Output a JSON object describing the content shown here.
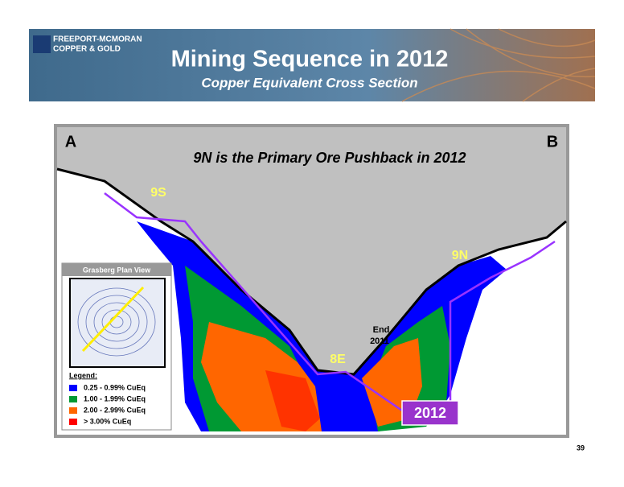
{
  "header": {
    "company_line1": "FREEPORT-MCMORAN",
    "company_line2": "COPPER & GOLD",
    "title": "Mining Sequence in 2012",
    "subtitle": "Copper Equivalent Cross Section"
  },
  "section": {
    "left_label": "A",
    "right_label": "B",
    "heading": "9N is the Primary Ore Pushback in 2012",
    "labels": {
      "s9": "9S",
      "n9": "9N",
      "e8": "8E",
      "end": "End",
      "end_year": "2011",
      "year": "2012"
    }
  },
  "inset": {
    "title": "Grasberg Plan View"
  },
  "legend": {
    "title": "Legend:",
    "items": [
      {
        "label": "0.25 - 0.99% CuEq",
        "color": "#0000ff"
      },
      {
        "label": "1.00 - 1.99% CuEq",
        "color": "#009933"
      },
      {
        "label": "2.00 - 2.99% CuEq",
        "color": "#ff6600"
      },
      {
        "label": "> 3.00% CuEq",
        "color": "#ff0000"
      }
    ]
  },
  "footer": {
    "page_number": "39"
  }
}
